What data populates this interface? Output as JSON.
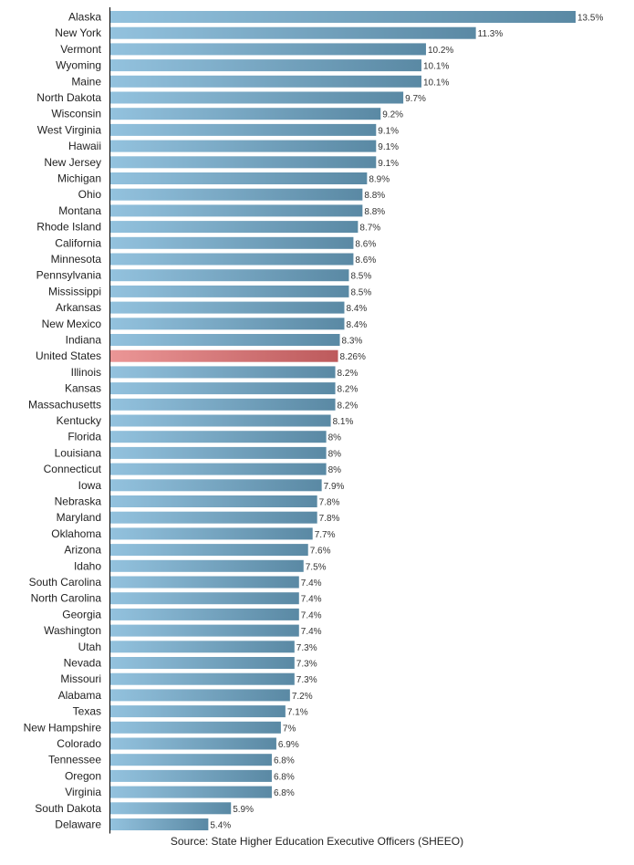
{
  "chart_data": {
    "type": "bar",
    "orientation": "horizontal",
    "categories": [
      "Alaska",
      "New York",
      "Vermont",
      "Wyoming",
      "Maine",
      "North Dakota",
      "Wisconsin",
      "West Virginia",
      "Hawaii",
      "New Jersey",
      "Michigan",
      "Ohio",
      "Montana",
      "Rhode Island",
      "California",
      "Minnesota",
      "Pennsylvania",
      "Mississippi",
      "Arkansas",
      "New Mexico",
      "Indiana",
      "United States",
      "Illinois",
      "Kansas",
      "Massachusetts",
      "Kentucky",
      "Florida",
      "Louisiana",
      "Connecticut",
      "Iowa",
      "Nebraska",
      "Maryland",
      "Oklahoma",
      "Arizona",
      "Idaho",
      "South Carolina",
      "North Carolina",
      "Georgia",
      "Washington",
      "Utah",
      "Nevada",
      "Missouri",
      "Alabama",
      "Texas",
      "New Hampshire",
      "Colorado",
      "Tennessee",
      "Oregon",
      "Virginia",
      "South Dakota",
      "Delaware"
    ],
    "values": [
      13.5,
      11.3,
      10.2,
      10.1,
      10.1,
      9.7,
      9.2,
      9.1,
      9.1,
      9.1,
      8.9,
      8.8,
      8.8,
      8.7,
      8.6,
      8.6,
      8.5,
      8.5,
      8.4,
      8.4,
      8.3,
      8.26,
      8.2,
      8.2,
      8.2,
      8.1,
      8,
      8,
      8,
      7.9,
      7.8,
      7.8,
      7.7,
      7.6,
      7.5,
      7.4,
      7.4,
      7.4,
      7.4,
      7.3,
      7.3,
      7.3,
      7.2,
      7.1,
      7,
      6.9,
      6.8,
      6.8,
      6.8,
      5.9,
      5.4
    ],
    "value_labels": [
      "13.5%",
      "11.3%",
      "10.2%",
      "10.1%",
      "10.1%",
      "9.7%",
      "9.2%",
      "9.1%",
      "9.1%",
      "9.1%",
      "8.9%",
      "8.8%",
      "8.8%",
      "8.7%",
      "8.6%",
      "8.6%",
      "8.5%",
      "8.5%",
      "8.4%",
      "8.4%",
      "8.3%",
      "8.26%",
      "8.2%",
      "8.2%",
      "8.2%",
      "8.1%",
      "8%",
      "8%",
      "8%",
      "7.9%",
      "7.8%",
      "7.8%",
      "7.7%",
      "7.6%",
      "7.5%",
      "7.4%",
      "7.4%",
      "7.4%",
      "7.4%",
      "7.3%",
      "7.3%",
      "7.3%",
      "7.2%",
      "7.1%",
      "7%",
      "6.9%",
      "6.8%",
      "6.8%",
      "6.8%",
      "5.9%",
      "5.4%"
    ],
    "highlight_category": "United States",
    "xlim": [
      3.24,
      13.5
    ],
    "grid": false,
    "colors": {
      "bar_light": "#93c2de",
      "bar_dark": "#5a89a4",
      "highlight_light": "#eb9696",
      "highlight_dark": "#bd5a5c"
    }
  },
  "source": "Source: State Higher Education Executive Officers (SHEEO)"
}
